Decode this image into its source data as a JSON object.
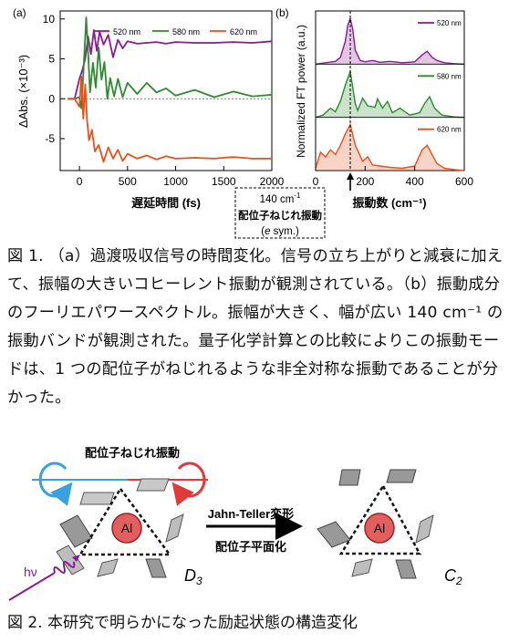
{
  "fig1": {
    "panel_a_label": "(a)",
    "panel_b_label": "(b)",
    "annotation": {
      "line1": "140 cm",
      "line1_sup": "-1",
      "line2": "配位子ねじれ振動",
      "line3_pre": "(",
      "line3_it": "e",
      "line3_post": " sym.)"
    },
    "caption": "図 1. （a）過渡吸収信号の時間変化。信号の立ち上がりと減衰に加えて、振幅の大きいコヒーレント振動が観測されている。（b）振動成分のフーリエパワースペクトル。振幅が大きく、幅が広い 140 cm⁻¹ の振動バンドが観測された。量子化学計算との比較によりこの振動モードは、1 つの配位子がねじれるような非全対称な振動であることが分かった。"
  },
  "chart_data": [
    {
      "type": "line",
      "panel": "(a)",
      "xlabel": "遅延時間 (fs)",
      "ylabel": "ΔAbs. (×10⁻³)",
      "xlim": [
        -200,
        2000
      ],
      "ylim": [
        -9,
        11
      ],
      "xticks": [
        "0",
        "500",
        "1000",
        "1500",
        "2000"
      ],
      "yticks": [
        "10",
        "5",
        "0",
        "-5"
      ],
      "legend_position": "top",
      "series": [
        {
          "name": "520 nm",
          "color": "#8b1a93",
          "x": [
            -120,
            -50,
            0,
            30,
            60,
            90,
            120,
            150,
            180,
            210,
            250,
            300,
            350,
            400,
            450,
            500,
            600,
            700,
            800,
            900,
            1000,
            1200,
            1400,
            1600,
            1800,
            2000
          ],
          "y": [
            0,
            0,
            2.5,
            3.6,
            5,
            7.8,
            5.6,
            8.6,
            6,
            8.4,
            6.8,
            8.0,
            5.2,
            7.4,
            6.3,
            7.2,
            6.9,
            7.0,
            7.1,
            6.9,
            7.1,
            7.0,
            7.0,
            7.1,
            7.0,
            7.2
          ]
        },
        {
          "name": "580 nm",
          "color": "#2e8b2e",
          "x": [
            -120,
            -50,
            0,
            20,
            40,
            70,
            90,
            110,
            140,
            170,
            200,
            230,
            260,
            290,
            320,
            360,
            400,
            450,
            500,
            600,
            700,
            800,
            900,
            1000,
            1200,
            1400,
            1600,
            1800,
            2000
          ],
          "y": [
            0,
            0,
            0.2,
            -1.2,
            3,
            10.2,
            5.8,
            0.8,
            4.5,
            1.4,
            6.4,
            2.4,
            4.6,
            0,
            2.6,
            0.3,
            2.5,
            0.2,
            2.0,
            0.6,
            2.0,
            0.8,
            1.3,
            0.4,
            1.1,
            0.2,
            0.9,
            0.3,
            0.5
          ]
        },
        {
          "name": "620 nm",
          "color": "#e8501a",
          "x": [
            -120,
            -50,
            0,
            20,
            40,
            60,
            80,
            100,
            130,
            160,
            200,
            250,
            300,
            350,
            400,
            450,
            500,
            600,
            700,
            800,
            900,
            1000,
            1200,
            1400,
            1600,
            1800,
            2000
          ],
          "y": [
            0,
            0,
            -1,
            2.8,
            -2.5,
            1.8,
            -2.8,
            -5.2,
            -3.9,
            -6.6,
            -5.8,
            -7.9,
            -6.1,
            -7.5,
            -6.4,
            -7.8,
            -6.9,
            -7.5,
            -7.1,
            -7.6,
            -7.2,
            -7.5,
            -7.4,
            -7.5,
            -7.3,
            -7.5,
            -7.5
          ]
        }
      ]
    },
    {
      "type": "area",
      "panel": "(b)",
      "xlabel": "振動数 (cm⁻¹)",
      "ylabel": "Normalized FT power (a.u.)",
      "xlim": [
        0,
        600
      ],
      "xticks": [
        "0",
        "200",
        "400",
        "600"
      ],
      "marker_x": 140,
      "series": [
        {
          "name": "520 nm",
          "color": "#8b1a93",
          "x": [
            0,
            40,
            80,
            100,
            120,
            130,
            140,
            150,
            160,
            180,
            200,
            230,
            260,
            300,
            350,
            400,
            430,
            450,
            470,
            490,
            520,
            560,
            600
          ],
          "y": [
            0,
            0.03,
            0.06,
            0.15,
            0.5,
            0.85,
            1,
            0.75,
            0.3,
            0.08,
            0.05,
            0.08,
            0.04,
            0.06,
            0.03,
            0.05,
            0.2,
            0.28,
            0.15,
            0.08,
            0.03,
            0.01,
            0
          ]
        },
        {
          "name": "580 nm",
          "color": "#2e8b2e",
          "x": [
            0,
            30,
            60,
            80,
            100,
            120,
            140,
            160,
            170,
            190,
            210,
            240,
            250,
            270,
            290,
            310,
            340,
            380,
            420,
            440,
            460,
            480,
            510,
            560,
            600
          ],
          "y": [
            0,
            0.05,
            0.2,
            0.12,
            0.35,
            0.7,
            1,
            0.3,
            0.15,
            0.42,
            0.25,
            0.22,
            0.4,
            0.2,
            0.35,
            0.1,
            0.2,
            0.05,
            0.1,
            0.3,
            0.45,
            0.2,
            0.05,
            0.01,
            0
          ]
        },
        {
          "name": "620 nm",
          "color": "#e8501a",
          "x": [
            0,
            20,
            40,
            60,
            80,
            100,
            120,
            140,
            160,
            190,
            210,
            230,
            260,
            300,
            350,
            400,
            430,
            450,
            470,
            490,
            520,
            560,
            600
          ],
          "y": [
            0.05,
            0.4,
            0.3,
            0.45,
            0.35,
            0.55,
            0.8,
            1,
            0.55,
            0.2,
            0.3,
            0.12,
            0.1,
            0.07,
            0.05,
            0.1,
            0.45,
            0.55,
            0.35,
            0.15,
            0.05,
            0.02,
            0
          ]
        }
      ]
    }
  ],
  "fig2": {
    "left_label": "配位子ねじれ振動",
    "arrow_label_top": "Jahn-Teller変形",
    "arrow_label_bottom": "配位子平面化",
    "atom_left": "Al",
    "atom_right": "Al",
    "symmetry_left_main": "D",
    "symmetry_left_sub": "3",
    "symmetry_right_main": "C",
    "symmetry_right_sub": "2",
    "photon_label": "hν",
    "caption": "図 2. 本研究で明らかになった励起状態の構造変化",
    "colors": {
      "atom": "#e06060",
      "plate": "#9a9a9a",
      "rot_blue": "#3aa0e0",
      "rot_red": "#e03a3a",
      "photon": "#8b1a93"
    }
  }
}
